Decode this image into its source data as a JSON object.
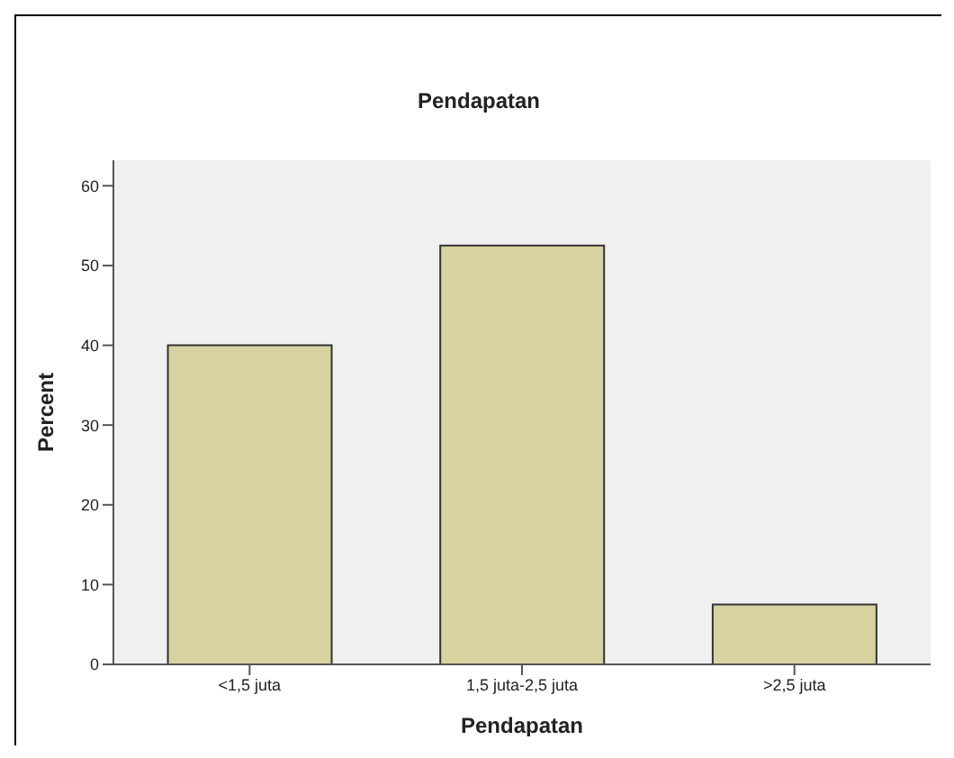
{
  "chart_data": {
    "type": "bar",
    "title": "Pendapatan",
    "xlabel": "Pendapatan",
    "ylabel": "Percent",
    "categories": [
      "<1,5 juta",
      "1,5 juta-2,5 juta",
      ">2,5 juta"
    ],
    "values": [
      40,
      52.5,
      7.5
    ],
    "color": "#d6d3a0",
    "ylim": [
      0,
      63.2
    ],
    "yticks": [
      0,
      10,
      20,
      30,
      40,
      50,
      60
    ],
    "grid": false
  }
}
